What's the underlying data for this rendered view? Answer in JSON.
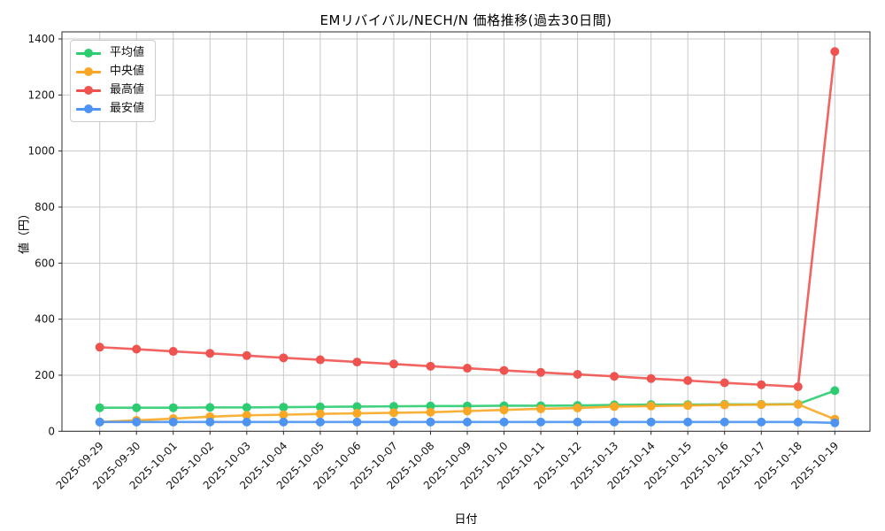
{
  "chart_data": {
    "type": "line",
    "title": "EMリバイバル/NECH/N 価格推移(過去30日間)",
    "xlabel": "日付",
    "ylabel": "値（円）",
    "x": [
      "2025-09-29",
      "2025-09-30",
      "2025-10-01",
      "2025-10-02",
      "2025-10-03",
      "2025-10-04",
      "2025-10-05",
      "2025-10-06",
      "2025-10-07",
      "2025-10-08",
      "2025-10-09",
      "2025-10-10",
      "2025-10-11",
      "2025-10-12",
      "2025-10-13",
      "2025-10-14",
      "2025-10-15",
      "2025-10-16",
      "2025-10-17",
      "2025-10-18",
      "2025-10-19"
    ],
    "series": [
      {
        "key": "average",
        "name": "平均値",
        "color": "#2ecc71",
        "values": [
          84,
          84,
          84,
          85,
          85,
          86,
          87,
          88,
          89,
          90,
          90,
          91,
          91,
          92,
          94,
          95,
          95,
          96,
          96,
          97,
          145
        ]
      },
      {
        "key": "median",
        "name": "中央値",
        "color": "#f9a825",
        "values": [
          33,
          39,
          45,
          52,
          57,
          59,
          62,
          64,
          66,
          68,
          72,
          76,
          80,
          83,
          88,
          90,
          92,
          94,
          95,
          96,
          43
        ]
      },
      {
        "key": "max",
        "name": "最高値",
        "color": "#ef5350",
        "values": [
          300,
          293,
          285,
          278,
          270,
          262,
          255,
          247,
          240,
          232,
          225,
          217,
          210,
          203,
          196,
          188,
          181,
          173,
          166,
          159,
          1355
        ]
      },
      {
        "key": "min",
        "name": "最安値",
        "color": "#4d94f2",
        "values": [
          33,
          33,
          33,
          33,
          33,
          33,
          33,
          33,
          33,
          33,
          33,
          33,
          33,
          33,
          33,
          33,
          33,
          33,
          33,
          33,
          30
        ]
      }
    ],
    "ylim": [
      0,
      1425
    ],
    "ytick_step": 200,
    "ytick_max": 1400,
    "grid": true,
    "legend_position": "upper left"
  },
  "colors": {
    "grid": "#c8c8c8",
    "spine": "#2b2b2b",
    "tick_text": "#161616"
  }
}
